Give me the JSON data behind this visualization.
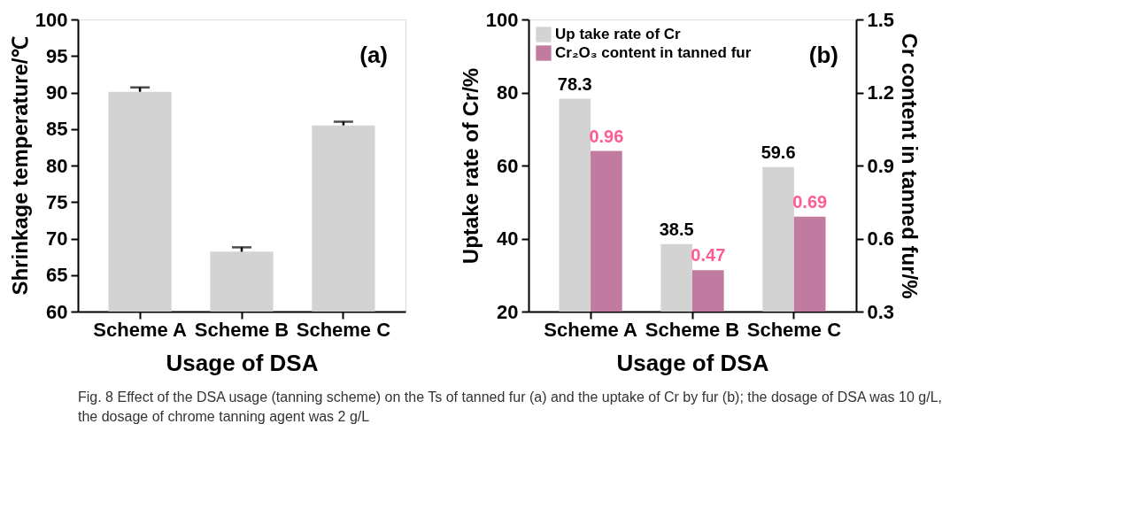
{
  "chart_data": [
    {
      "type": "bar",
      "xlabel": "Usage of DSA",
      "ylabel": "Shrinkage temperature/℃",
      "categories": [
        "Scheme A",
        "Scheme B",
        "Scheme C"
      ],
      "values": [
        90.1,
        68.2,
        85.5
      ],
      "color": "#d3d3d3",
      "errors": [
        [
          90.1,
          90.7
        ],
        [
          68.2,
          68.8
        ],
        [
          85.5,
          86.0
        ]
      ],
      "ylim": [
        60,
        100
      ],
      "yticks": [
        60,
        65,
        70,
        75,
        80,
        85,
        90,
        95,
        100
      ],
      "grid": false,
      "legend": false,
      "annotations": [
        "(a)",
        "Fig. 8 Effect of the DSA usage (tanning scheme) on the Ts of tanned fur (a) and the uptake of Cr by fur (b); the dosage of DSA was 10 g/L, the dosage of chrome tanning agent was 2 g/L"
      ]
    },
    {
      "type": "bar",
      "xlabel": "Usage of DSA",
      "ylabel": "Uptake rate of Cr/%",
      "y2label": "Cr content in tanned fur/%",
      "categories": [
        "Scheme A",
        "Scheme B",
        "Scheme C"
      ],
      "series": [
        {
          "name": "Up take rate of Cr",
          "color": "#d3d3d3",
          "values": [
            78.3,
            38.5,
            59.6
          ]
        },
        {
          "name": "Cr₂O₃ content in tanned fur",
          "color": "#c27ba0",
          "values": [
            0.96,
            0.47,
            0.69
          ],
          "axis": "y2"
        }
      ],
      "ylim": [
        20,
        100
      ],
      "yticks": [
        20,
        40,
        60,
        80,
        100
      ],
      "y2lim": [
        0.3,
        1.5
      ],
      "y2ticks": [
        0.3,
        0.6,
        0.9,
        1.2,
        1.5
      ],
      "data_labels": true,
      "grid": false,
      "legend": "top left",
      "annotations": [
        "(b)"
      ]
    }
  ]
}
